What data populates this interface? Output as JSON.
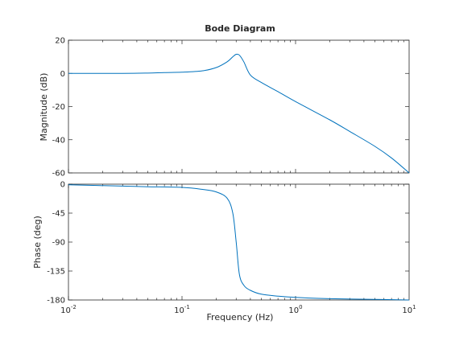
{
  "chart_data": {
    "type": "line",
    "title": "Bode Diagram",
    "xlabel": "Frequency  (Hz)",
    "xscale": "log",
    "xlim": [
      0.01,
      10
    ],
    "x_ticks": [
      {
        "base": "10",
        "exp": "-2",
        "value": 0.01
      },
      {
        "base": "10",
        "exp": "-1",
        "value": 0.1
      },
      {
        "base": "10",
        "exp": "0",
        "value": 1
      },
      {
        "base": "10",
        "exp": "1",
        "value": 10
      }
    ],
    "line_color": "#0072bd",
    "axes_color": "#262626",
    "magnitude": {
      "ylabel": "Magnitude (dB)",
      "ylim": [
        -60,
        20
      ],
      "y_ticks": [
        {
          "value": 20,
          "label": "20"
        },
        {
          "value": 0,
          "label": "0"
        },
        {
          "value": -20,
          "label": "-20"
        },
        {
          "value": -40,
          "label": "-40"
        },
        {
          "value": -60,
          "label": "-60"
        }
      ],
      "x": [
        0.01,
        0.03,
        0.05,
        0.07,
        0.1,
        0.15,
        0.2,
        0.25,
        0.28,
        0.3,
        0.32,
        0.35,
        0.4,
        0.5,
        0.7,
        1,
        2,
        3,
        5,
        7,
        10
      ],
      "y": [
        0,
        0,
        0.2,
        0.5,
        0.7,
        1.5,
        3.5,
        7,
        10,
        11.5,
        11,
        7,
        -1,
        -5.5,
        -11,
        -17,
        -28,
        -35,
        -44,
        -51,
        -60
      ]
    },
    "phase": {
      "ylabel": "Phase (deg)",
      "ylim": [
        -180,
        0
      ],
      "y_ticks": [
        {
          "value": 0,
          "label": "0"
        },
        {
          "value": -45,
          "label": "-45"
        },
        {
          "value": -90,
          "label": "-90"
        },
        {
          "value": -135,
          "label": "-135"
        },
        {
          "value": -180,
          "label": "-180"
        }
      ],
      "x": [
        0.01,
        0.03,
        0.05,
        0.1,
        0.15,
        0.2,
        0.25,
        0.28,
        0.3,
        0.32,
        0.35,
        0.4,
        0.5,
        0.7,
        1,
        2,
        5,
        10
      ],
      "y": [
        -1,
        -3,
        -4,
        -5,
        -8,
        -12,
        -22,
        -45,
        -90,
        -140,
        -157,
        -165,
        -171,
        -174,
        -176,
        -178,
        -179,
        -180
      ]
    }
  }
}
